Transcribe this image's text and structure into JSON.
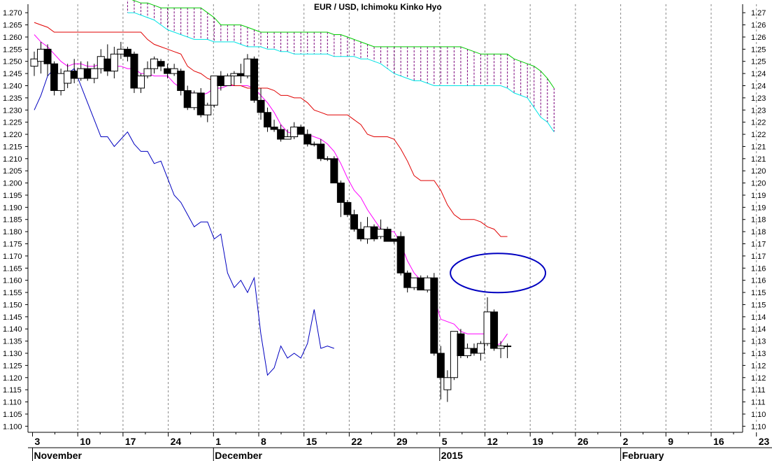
{
  "chart_data": {
    "type": "candlestick",
    "title": "EUR / USD, Ichimoku Kinko Hyo",
    "y_ticks": [
      1.27,
      1.265,
      1.26,
      1.255,
      1.25,
      1.245,
      1.24,
      1.235,
      1.23,
      1.225,
      1.22,
      1.215,
      1.21,
      1.205,
      1.2,
      1.195,
      1.19,
      1.185,
      1.18,
      1.175,
      1.17,
      1.165,
      1.16,
      1.155,
      1.15,
      1.145,
      1.14,
      1.135,
      1.13,
      1.125,
      1.12,
      1.115,
      1.11,
      1.105,
      1.1
    ],
    "y_left_labels": [
      "1.270",
      "1.265",
      "1.260",
      "1.255",
      "1.250",
      "1.245",
      "1.240",
      "1.235",
      "1.230",
      "1.225",
      "1.220",
      "1.215",
      "1.210",
      "1.205",
      "1.200",
      "1.195",
      "1.190",
      "1.185",
      "1.180",
      "1.175",
      "1.170",
      "1.165",
      "1.160",
      "1.155",
      "1.150",
      "1.145",
      "1.140",
      "1.135",
      "1.130",
      "1.125",
      "1.120",
      "1.115",
      "1.110",
      "1.105",
      "1.100"
    ],
    "y_right_labels": [
      "1.27",
      "1.26",
      "1.26",
      "1.25",
      "1.25",
      "1.24",
      "1.24",
      "1.23",
      "1.23",
      "1.22",
      "1.22",
      "1.21",
      "1.21",
      "1.20",
      "1.20",
      "1.19",
      "1.19",
      "1.18",
      "1.18",
      "1.17",
      "1.17",
      "1.16",
      "1.16",
      "1.15",
      "1.15",
      "1.14",
      "1.14",
      "1.13",
      "1.13",
      "1.12",
      "1.12",
      "1.11",
      "1.11",
      "1.10",
      "1.10"
    ],
    "ylim": [
      1.0975,
      1.2735
    ],
    "x_day_labels": [
      "3",
      "10",
      "17",
      "24",
      "1",
      "8",
      "15",
      "22",
      "29",
      "5",
      "12",
      "19",
      "26",
      "2",
      "9",
      "16",
      "23"
    ],
    "x_month_labels": [
      "November",
      "December",
      "2015",
      "February"
    ],
    "grid": "vertical dotted",
    "candles": [
      {
        "o": 1.248,
        "h": 1.254,
        "l": 1.244,
        "c": 1.251
      },
      {
        "o": 1.25,
        "h": 1.258,
        "l": 1.245,
        "c": 1.255
      },
      {
        "o": 1.255,
        "h": 1.257,
        "l": 1.244,
        "c": 1.249
      },
      {
        "o": 1.249,
        "h": 1.25,
        "l": 1.236,
        "c": 1.238
      },
      {
        "o": 1.238,
        "h": 1.247,
        "l": 1.236,
        "c": 1.245
      },
      {
        "o": 1.241,
        "h": 1.249,
        "l": 1.239,
        "c": 1.246
      },
      {
        "o": 1.246,
        "h": 1.251,
        "l": 1.241,
        "c": 1.243
      },
      {
        "o": 1.243,
        "h": 1.25,
        "l": 1.242,
        "c": 1.247
      },
      {
        "o": 1.247,
        "h": 1.25,
        "l": 1.242,
        "c": 1.243
      },
      {
        "o": 1.243,
        "h": 1.249,
        "l": 1.241,
        "c": 1.247
      },
      {
        "o": 1.247,
        "h": 1.255,
        "l": 1.245,
        "c": 1.252
      },
      {
        "o": 1.251,
        "h": 1.257,
        "l": 1.244,
        "c": 1.246
      },
      {
        "o": 1.246,
        "h": 1.256,
        "l": 1.243,
        "c": 1.253
      },
      {
        "o": 1.253,
        "h": 1.258,
        "l": 1.251,
        "c": 1.255
      },
      {
        "o": 1.255,
        "h": 1.256,
        "l": 1.25,
        "c": 1.252
      },
      {
        "o": 1.253,
        "h": 1.254,
        "l": 1.237,
        "c": 1.239
      },
      {
        "o": 1.239,
        "h": 1.245,
        "l": 1.237,
        "c": 1.244
      },
      {
        "o": 1.244,
        "h": 1.25,
        "l": 1.243,
        "c": 1.247
      },
      {
        "o": 1.247,
        "h": 1.252,
        "l": 1.245,
        "c": 1.251
      },
      {
        "o": 1.25,
        "h": 1.251,
        "l": 1.246,
        "c": 1.248
      },
      {
        "o": 1.247,
        "h": 1.249,
        "l": 1.243,
        "c": 1.245
      },
      {
        "o": 1.245,
        "h": 1.249,
        "l": 1.244,
        "c": 1.247
      },
      {
        "o": 1.246,
        "h": 1.247,
        "l": 1.236,
        "c": 1.238
      },
      {
        "o": 1.238,
        "h": 1.24,
        "l": 1.23,
        "c": 1.231
      },
      {
        "o": 1.231,
        "h": 1.238,
        "l": 1.23,
        "c": 1.237
      },
      {
        "o": 1.237,
        "h": 1.239,
        "l": 1.227,
        "c": 1.228
      },
      {
        "o": 1.228,
        "h": 1.233,
        "l": 1.225,
        "c": 1.232
      },
      {
        "o": 1.232,
        "h": 1.244,
        "l": 1.231,
        "c": 1.244
      },
      {
        "o": 1.244,
        "h": 1.246,
        "l": 1.238,
        "c": 1.24
      },
      {
        "o": 1.24,
        "h": 1.245,
        "l": 1.24,
        "c": 1.244
      },
      {
        "o": 1.244,
        "h": 1.246,
        "l": 1.24,
        "c": 1.245
      },
      {
        "o": 1.245,
        "h": 1.249,
        "l": 1.241,
        "c": 1.244
      },
      {
        "o": 1.244,
        "h": 1.253,
        "l": 1.243,
        "c": 1.251
      },
      {
        "o": 1.251,
        "h": 1.252,
        "l": 1.233,
        "c": 1.234
      },
      {
        "o": 1.234,
        "h": 1.239,
        "l": 1.226,
        "c": 1.229
      },
      {
        "o": 1.229,
        "h": 1.231,
        "l": 1.221,
        "c": 1.223
      },
      {
        "o": 1.223,
        "h": 1.226,
        "l": 1.221,
        "c": 1.222
      },
      {
        "o": 1.222,
        "h": 1.224,
        "l": 1.217,
        "c": 1.218
      },
      {
        "o": 1.218,
        "h": 1.222,
        "l": 1.218,
        "c": 1.219
      },
      {
        "o": 1.219,
        "h": 1.225,
        "l": 1.218,
        "c": 1.223
      },
      {
        "o": 1.223,
        "h": 1.224,
        "l": 1.22,
        "c": 1.22
      },
      {
        "o": 1.22,
        "h": 1.222,
        "l": 1.215,
        "c": 1.216
      },
      {
        "o": 1.216,
        "h": 1.217,
        "l": 1.215,
        "c": 1.216
      },
      {
        "o": 1.216,
        "h": 1.218,
        "l": 1.209,
        "c": 1.21
      },
      {
        "o": 1.21,
        "h": 1.211,
        "l": 1.209,
        "c": 1.21
      },
      {
        "o": 1.21,
        "h": 1.211,
        "l": 1.2,
        "c": 1.2
      },
      {
        "o": 1.2,
        "h": 1.201,
        "l": 1.186,
        "c": 1.192
      },
      {
        "o": 1.192,
        "h": 1.193,
        "l": 1.186,
        "c": 1.187
      },
      {
        "o": 1.187,
        "h": 1.189,
        "l": 1.18,
        "c": 1.181
      },
      {
        "o": 1.181,
        "h": 1.184,
        "l": 1.176,
        "c": 1.177
      },
      {
        "o": 1.177,
        "h": 1.186,
        "l": 1.175,
        "c": 1.182
      },
      {
        "o": 1.182,
        "h": 1.183,
        "l": 1.176,
        "c": 1.177
      },
      {
        "o": 1.178,
        "h": 1.185,
        "l": 1.177,
        "c": 1.181
      },
      {
        "o": 1.181,
        "h": 1.182,
        "l": 1.176,
        "c": 1.176
      },
      {
        "o": 1.177,
        "h": 1.177,
        "l": 1.175,
        "c": 1.176
      },
      {
        "o": 1.178,
        "h": 1.18,
        "l": 1.162,
        "c": 1.163
      },
      {
        "o": 1.163,
        "h": 1.164,
        "l": 1.155,
        "c": 1.157
      },
      {
        "o": 1.157,
        "h": 1.161,
        "l": 1.156,
        "c": 1.161
      },
      {
        "o": 1.161,
        "h": 1.162,
        "l": 1.156,
        "c": 1.156
      },
      {
        "o": 1.156,
        "h": 1.162,
        "l": 1.155,
        "c": 1.161
      },
      {
        "o": 1.161,
        "h": 1.163,
        "l": 1.129,
        "c": 1.13
      },
      {
        "o": 1.13,
        "h": 1.133,
        "l": 1.111,
        "c": 1.12
      },
      {
        "o": 1.115,
        "h": 1.123,
        "l": 1.11,
        "c": 1.12
      },
      {
        "o": 1.12,
        "h": 1.139,
        "l": 1.119,
        "c": 1.139
      },
      {
        "o": 1.138,
        "h": 1.14,
        "l": 1.128,
        "c": 1.129
      },
      {
        "o": 1.129,
        "h": 1.134,
        "l": 1.128,
        "c": 1.132
      },
      {
        "o": 1.132,
        "h": 1.134,
        "l": 1.129,
        "c": 1.13
      },
      {
        "o": 1.13,
        "h": 1.135,
        "l": 1.127,
        "c": 1.134
      },
      {
        "o": 1.134,
        "h": 1.153,
        "l": 1.133,
        "c": 1.147
      },
      {
        "o": 1.147,
        "h": 1.148,
        "l": 1.131,
        "c": 1.132
      },
      {
        "o": 1.132,
        "h": 1.135,
        "l": 1.128,
        "c": 1.133
      },
      {
        "o": 1.133,
        "h": 1.134,
        "l": 1.128,
        "c": 1.133
      }
    ],
    "series": [
      {
        "name": "",
        "color": "#0000c0",
        "start_index": 0,
        "values": [
          1.23,
          1.236,
          1.244,
          1.247,
          1.242,
          1.245,
          1.247,
          1.24,
          1.233,
          1.226,
          1.219,
          1.219,
          1.215,
          1.218,
          1.221,
          1.216,
          1.213,
          1.213,
          1.208,
          1.209,
          1.202,
          1.195,
          1.192,
          1.187,
          1.182,
          1.184,
          1.184,
          1.177,
          1.179,
          1.163,
          1.157,
          1.16,
          1.155,
          1.161,
          1.138,
          1.121,
          1.124,
          1.133,
          1.128,
          1.13,
          1.128,
          1.134,
          1.148,
          1.132,
          1.133,
          1.132
        ]
      },
      {
        "name": "",
        "color": "#ff00ff",
        "start_index": 0,
        "values": [
          1.261,
          1.258,
          1.256,
          1.253,
          1.25,
          1.248,
          1.249,
          1.249,
          1.248,
          1.248,
          1.249,
          1.248,
          1.248,
          1.248,
          1.247,
          1.247,
          1.245,
          1.245,
          1.244,
          1.244,
          1.244,
          1.241,
          1.239,
          1.237,
          1.237,
          1.236,
          1.237,
          1.239,
          1.239,
          1.24,
          1.24,
          1.24,
          1.24,
          1.239,
          1.236,
          1.233,
          1.229,
          1.224,
          1.221,
          1.22,
          1.22,
          1.22,
          1.219,
          1.218,
          1.216,
          1.213,
          1.208,
          1.202,
          1.197,
          1.194,
          1.189,
          1.185,
          1.181,
          1.18,
          1.18,
          1.175,
          1.168,
          1.163,
          1.16,
          1.159,
          1.153,
          1.144,
          1.143,
          1.142,
          1.139,
          1.138,
          1.138,
          1.138,
          1.138,
          1.133,
          1.134,
          1.138
        ]
      },
      {
        "name": "",
        "color": "#e00000",
        "start_index": 0,
        "values": [
          1.266,
          1.265,
          1.264,
          1.262,
          1.262,
          1.262,
          1.262,
          1.262,
          1.262,
          1.262,
          1.262,
          1.262,
          1.262,
          1.262,
          1.262,
          1.262,
          1.262,
          1.259,
          1.257,
          1.256,
          1.255,
          1.254,
          1.253,
          1.248,
          1.246,
          1.245,
          1.243,
          1.242,
          1.241,
          1.241,
          1.24,
          1.24,
          1.239,
          1.239,
          1.239,
          1.239,
          1.238,
          1.236,
          1.236,
          1.235,
          1.235,
          1.233,
          1.23,
          1.229,
          1.228,
          1.228,
          1.228,
          1.228,
          1.226,
          1.224,
          1.22,
          1.219,
          1.219,
          1.219,
          1.218,
          1.214,
          1.209,
          1.203,
          1.201,
          1.201,
          1.201,
          1.197,
          1.191,
          1.187,
          1.185,
          1.185,
          1.185,
          1.184,
          1.182,
          1.181,
          1.178,
          1.178
        ]
      },
      {
        "name": "",
        "color": "#00cc00",
        "start_index": 14,
        "values": [
          1.276,
          1.275,
          1.274,
          1.274,
          1.273,
          1.272,
          1.272,
          1.272,
          1.272,
          1.272,
          1.272,
          1.272,
          1.27,
          1.268,
          1.265,
          1.265,
          1.265,
          1.265,
          1.264,
          1.263,
          1.262,
          1.262,
          1.262,
          1.262,
          1.262,
          1.262,
          1.262,
          1.262,
          1.262,
          1.262,
          1.262,
          1.261,
          1.261,
          1.26,
          1.259,
          1.258,
          1.257,
          1.256,
          1.256,
          1.256,
          1.256,
          1.256,
          1.256,
          1.256,
          1.256,
          1.256,
          1.256,
          1.256,
          1.256,
          1.256,
          1.256,
          1.255,
          1.254,
          1.253,
          1.253,
          1.253,
          1.253,
          1.253,
          1.251,
          1.25,
          1.249,
          1.248,
          1.246,
          1.243,
          1.239
        ]
      },
      {
        "name": "",
        "color": "#00e5e5",
        "start_index": 14,
        "values": [
          1.27,
          1.27,
          1.269,
          1.268,
          1.267,
          1.265,
          1.263,
          1.262,
          1.261,
          1.26,
          1.259,
          1.259,
          1.259,
          1.258,
          1.258,
          1.258,
          1.258,
          1.257,
          1.256,
          1.256,
          1.256,
          1.255,
          1.255,
          1.254,
          1.254,
          1.253,
          1.253,
          1.253,
          1.253,
          1.253,
          1.253,
          1.252,
          1.252,
          1.252,
          1.252,
          1.251,
          1.251,
          1.25,
          1.249,
          1.247,
          1.245,
          1.244,
          1.243,
          1.242,
          1.242,
          1.241,
          1.24,
          1.24,
          1.24,
          1.24,
          1.24,
          1.24,
          1.24,
          1.24,
          1.24,
          1.24,
          1.24,
          1.239,
          1.237,
          1.236,
          1.235,
          1.231,
          1.227,
          1.225,
          1.221
        ]
      }
    ],
    "annotation": {
      "shape": "ellipse",
      "color": "#0000c0",
      "x_index": 70,
      "y": 1.163
    }
  }
}
